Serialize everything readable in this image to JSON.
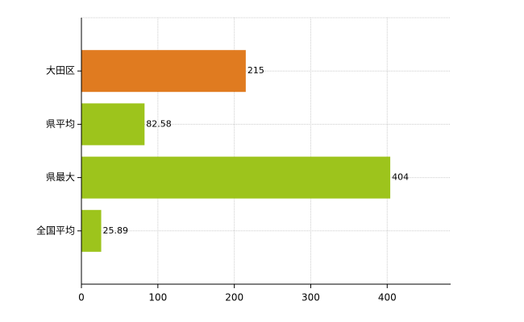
{
  "chart_data": {
    "type": "hbar",
    "categories": [
      "大田区",
      "県平均",
      "県最大",
      "全国平均"
    ],
    "values": [
      215,
      82.58,
      404,
      25.89
    ],
    "colors": [
      "#e07b20",
      "#9dc41c",
      "#9dc41c",
      "#9dc41c"
    ],
    "xlim": [
      0,
      483
    ],
    "xticks": [
      0,
      100,
      200,
      300,
      400
    ],
    "grid": true
  }
}
